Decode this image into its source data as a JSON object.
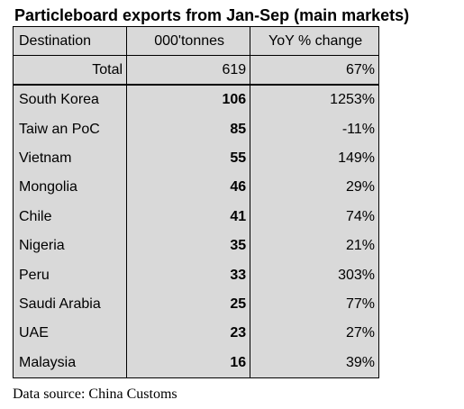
{
  "title": "Particleboard exports from Jan-Sep (main markets)",
  "table": {
    "headers": {
      "destination": "Destination",
      "volume": "000'tonnes",
      "yoy": "YoY % change"
    },
    "total": {
      "label": "Total",
      "volume": "619",
      "yoy": "67%"
    },
    "rows": [
      {
        "destination": "South Korea",
        "volume": "106",
        "yoy": "1253%"
      },
      {
        "destination": "Taiw an PoC",
        "volume": "85",
        "yoy": "-11%"
      },
      {
        "destination": "Vietnam",
        "volume": "55",
        "yoy": "149%"
      },
      {
        "destination": "Mongolia",
        "volume": "46",
        "yoy": "29%"
      },
      {
        "destination": "Chile",
        "volume": "41",
        "yoy": "74%"
      },
      {
        "destination": "Nigeria",
        "volume": "35",
        "yoy": "21%"
      },
      {
        "destination": "Peru",
        "volume": "33",
        "yoy": "303%"
      },
      {
        "destination": "Saudi Arabia",
        "volume": "25",
        "yoy": "77%"
      },
      {
        "destination": "UAE",
        "volume": "23",
        "yoy": "27%"
      },
      {
        "destination": "Malaysia",
        "volume": "16",
        "yoy": "39%"
      }
    ]
  },
  "source": "Data source: China Customs",
  "colors": {
    "table_background": "#d9d9d9",
    "border": "#000000"
  }
}
